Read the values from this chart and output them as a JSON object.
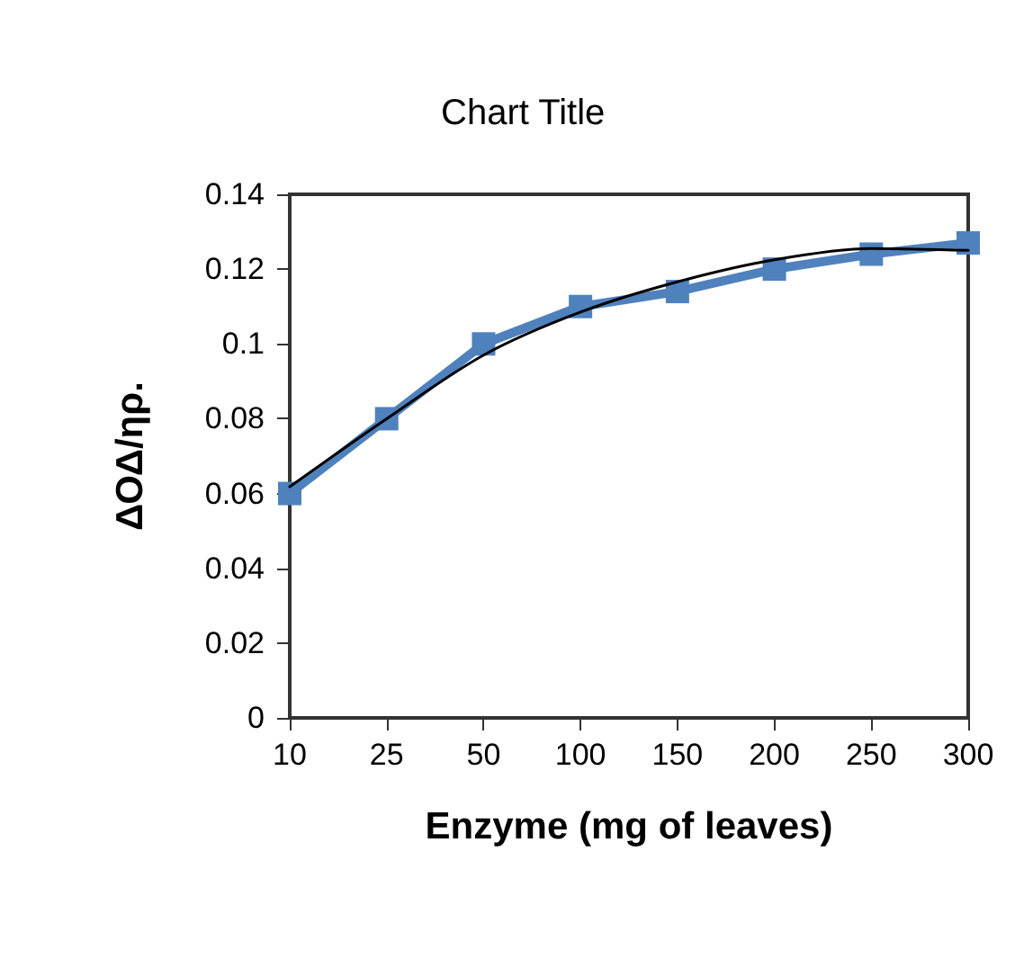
{
  "chart_data": {
    "type": "line",
    "title": "Chart Title",
    "xlabel": "Enzyme (mg of leaves)",
    "ylabel": "ΔΟΔ/ηρ.",
    "categories": [
      "10",
      "25",
      "50",
      "100",
      "150",
      "200",
      "250",
      "300"
    ],
    "series": [
      {
        "color": "#4f81bd",
        "marker": "square",
        "values": [
          0.06,
          0.08,
          0.1,
          0.11,
          0.114,
          0.12,
          0.124,
          0.127
        ]
      },
      {
        "type": "line",
        "color": "#000000",
        "marker": "none",
        "x": [
          "10",
          "25",
          "50",
          "100",
          "150",
          "200",
          "250",
          "300"
        ],
        "values": [
          0.0618,
          0.08,
          0.097,
          0.1085,
          0.1166,
          0.1225,
          0.1255,
          0.125
        ]
      }
    ],
    "ylim": [
      0,
      0.14
    ],
    "yticks": [
      0,
      0.02,
      0.04,
      0.06,
      0.08,
      0.1,
      0.12,
      0.14
    ],
    "grid": false
  }
}
